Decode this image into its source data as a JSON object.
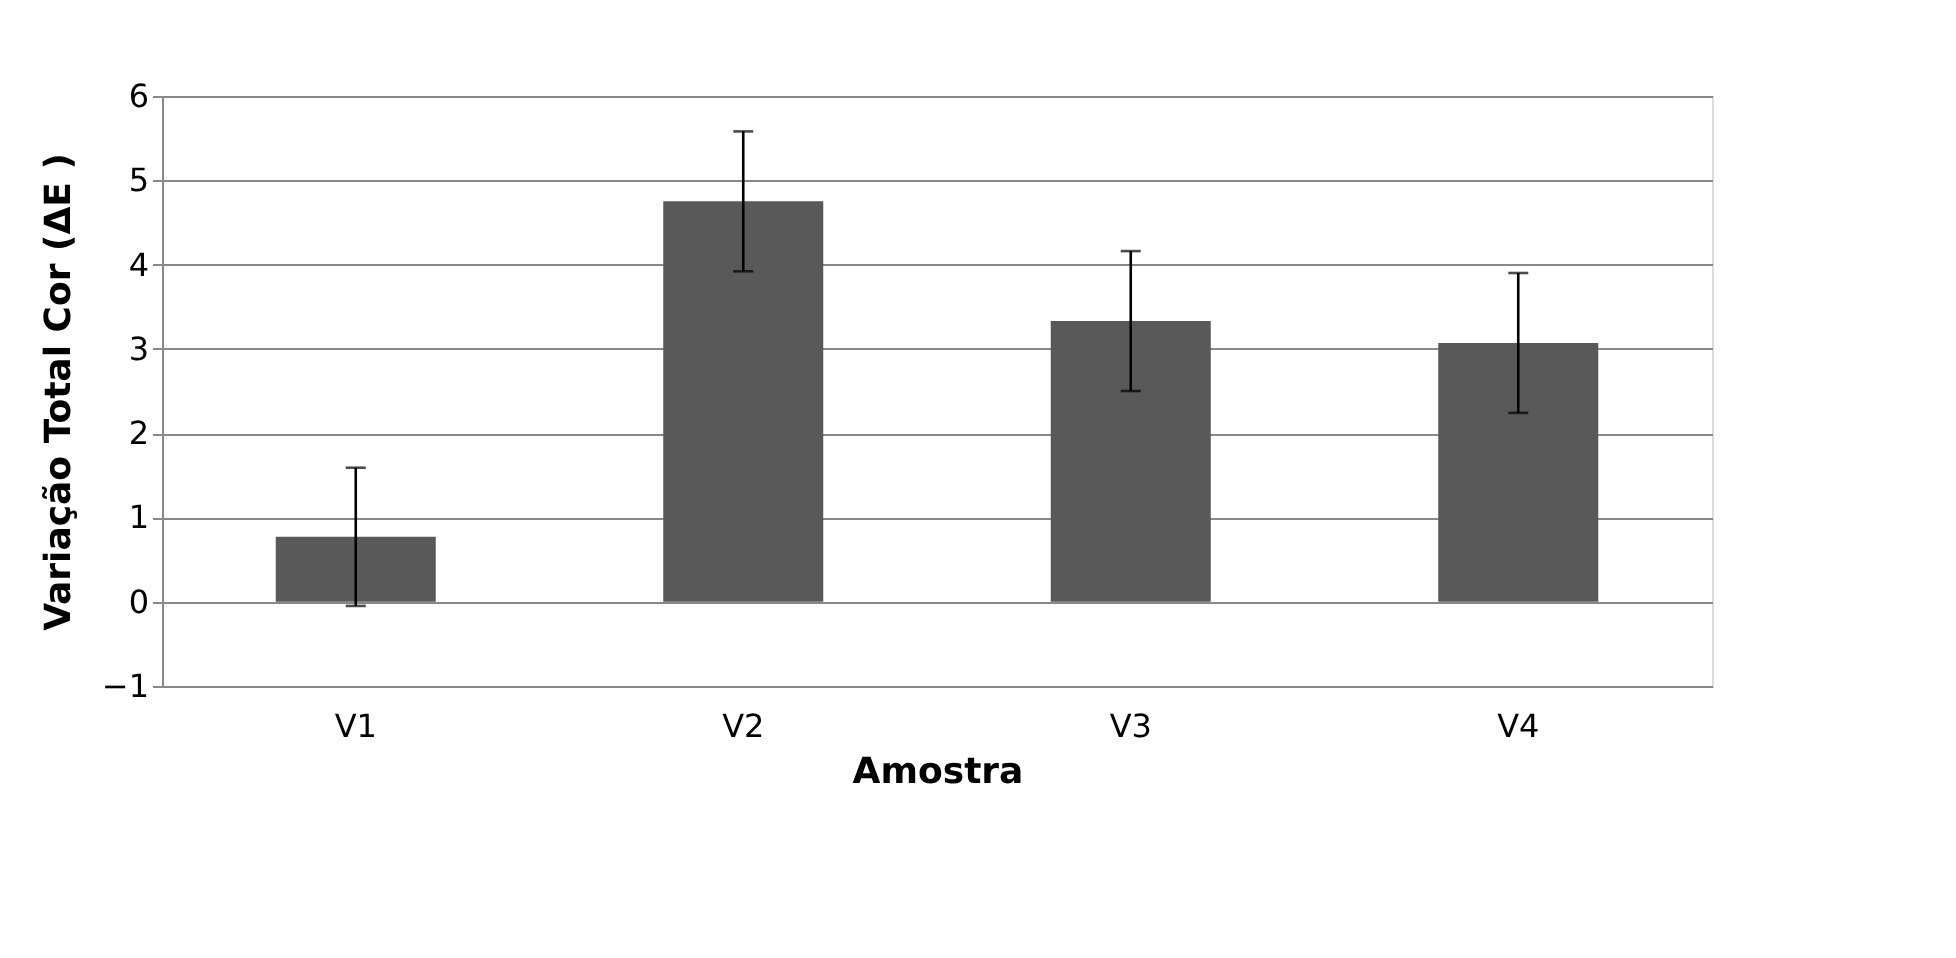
{
  "chart_data": {
    "type": "bar",
    "xlabel": "Amostra",
    "ylabel": "Variação Total Cor (ΔE )",
    "categories": [
      "V1",
      "V2",
      "V3",
      "V4"
    ],
    "series": [
      {
        "color": "#595959",
        "values": [
          0.77,
          4.75,
          3.33,
          3.07
        ],
        "errors": [
          0.82,
          0.83,
          0.83,
          0.83
        ]
      }
    ],
    "ylim": [
      -1,
      6
    ],
    "yticks": [
      -1,
      0,
      1,
      2,
      3,
      4,
      5,
      6
    ],
    "grid": "y"
  }
}
